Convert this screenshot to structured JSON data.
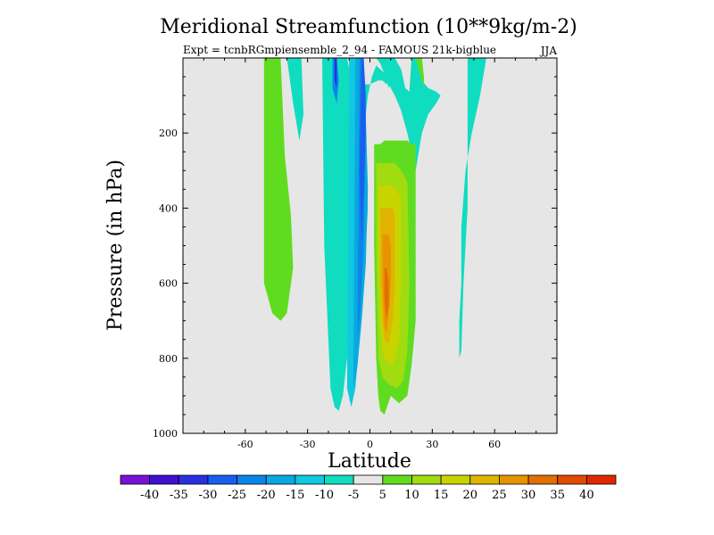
{
  "chart_data": {
    "type": "heatmap",
    "title": "Meridional Streamfunction (10**9kg/m-2)",
    "subtitle": "Expt = tcnbRGmpiensemble_2_94 - FAMOUS 21k-bigblue",
    "season": "JJA",
    "xlabel": "Latitude",
    "ylabel": "Pressure (in hPa)",
    "xlim": [
      -90,
      90
    ],
    "ylim": [
      1000,
      0
    ],
    "xticks": [
      -60,
      -30,
      0,
      30,
      60
    ],
    "xtick_labels": [
      "-60",
      "-30",
      "0",
      "30",
      "60"
    ],
    "yticks": [
      200,
      400,
      600,
      800,
      1000
    ],
    "ytick_labels": [
      "200",
      "400",
      "600",
      "800",
      "1000"
    ],
    "background": "#e6e6e6",
    "colorbar": {
      "colors": [
        "#7a10d8",
        "#4010d0",
        "#2a30e0",
        "#1a5ef0",
        "#0a86e8",
        "#0aa8e0",
        "#10c8e0",
        "#10dcc0",
        "#e6e6e6",
        "#60dc20",
        "#a0dc10",
        "#c8d400",
        "#e0b400",
        "#e89400",
        "#e07000",
        "#e04c00",
        "#e02800"
      ],
      "labels": [
        "-40",
        "-35",
        "-30",
        "-25",
        "-20",
        "-15",
        "-10",
        "-5",
        "5",
        "10",
        "15",
        "20",
        "25",
        "30",
        "35",
        "40"
      ]
    },
    "regions": [
      {
        "lat": [
          -50,
          -47,
          -43,
          -41,
          -38,
          -37,
          -40,
          -43,
          -47,
          -51,
          -51
        ],
        "p": [
          0,
          0,
          0,
          260,
          420,
          560,
          680,
          700,
          680,
          600,
          0
        ],
        "value": 7.5
      },
      {
        "lat": [
          -40,
          -38,
          -33,
          -32,
          -34,
          -37
        ],
        "p": [
          0,
          0,
          0,
          150,
          220,
          120
        ],
        "value": -7.5
      },
      {
        "lat": [
          -23,
          -21,
          -18,
          -15,
          -14,
          -11,
          -10,
          -9,
          -8,
          -6,
          -4,
          -2,
          0,
          2,
          4,
          6,
          8,
          9,
          7,
          5,
          3,
          1,
          -1,
          -3,
          -5,
          -7,
          -9,
          -11,
          -13,
          -15,
          -17,
          -19,
          -22,
          -23
        ],
        "p": [
          0,
          0,
          0,
          0,
          0,
          0,
          30,
          75,
          85,
          85,
          75,
          70,
          70,
          65,
          60,
          60,
          70,
          60,
          40,
          30,
          20,
          50,
          100,
          200,
          350,
          500,
          650,
          800,
          900,
          940,
          930,
          880,
          500,
          0
        ],
        "value": -7.5
      },
      {
        "lat": [
          -10,
          -7,
          -4,
          -2,
          -1,
          -3,
          -5,
          -7,
          -9,
          -11
        ],
        "p": [
          0,
          0,
          0,
          200,
          400,
          600,
          750,
          880,
          930,
          880
        ],
        "value": -12.5
      },
      {
        "lat": [
          -7,
          -4,
          -2,
          -1,
          -2,
          -4,
          -6,
          -8
        ],
        "p": [
          0,
          0,
          150,
          350,
          550,
          700,
          820,
          880
        ],
        "value": -17.5
      },
      {
        "lat": [
          -5,
          -3,
          -2,
          -3,
          -5,
          -6
        ],
        "p": [
          0,
          0,
          200,
          500,
          700,
          750
        ],
        "value": -22.5
      },
      {
        "lat": [
          -4,
          -3,
          -2,
          -2,
          -3,
          -4,
          -5
        ],
        "p": [
          0,
          0,
          100,
          200,
          350,
          500,
          300
        ],
        "value": -27.5
      },
      {
        "lat": [
          -18,
          -16,
          -15,
          -16,
          -18
        ],
        "p": [
          0,
          0,
          60,
          120,
          80
        ],
        "value": -22.5
      },
      {
        "lat": [
          -17,
          -16,
          -16,
          -17
        ],
        "p": [
          0,
          0,
          80,
          60
        ],
        "value": -32.5
      },
      {
        "lat": [
          1,
          3,
          5,
          6,
          7,
          8,
          9,
          10,
          11,
          12,
          11,
          10,
          8,
          6,
          4,
          2,
          1
        ],
        "p": [
          0,
          0,
          0,
          20,
          40,
          60,
          80,
          70,
          50,
          20,
          0,
          0,
          0,
          0,
          0,
          0,
          0
        ],
        "value": -7.5
      },
      {
        "lat": [
          3,
          5,
          6,
          7,
          8
        ],
        "p": [
          0,
          0,
          20,
          40,
          0
        ],
        "value": -12.5
      },
      {
        "lat": [
          8,
          11,
          12,
          15,
          17,
          19,
          20,
          24,
          25,
          25,
          28,
          32,
          34,
          32,
          28,
          25,
          22,
          18,
          15,
          12,
          10,
          8,
          6,
          5,
          3,
          1,
          0
        ],
        "p": [
          0,
          0,
          0,
          30,
          80,
          90,
          0,
          0,
          0,
          60,
          80,
          90,
          100,
          120,
          150,
          200,
          300,
          200,
          140,
          100,
          80,
          50,
          30,
          15,
          0,
          0,
          0
        ],
        "value": -7.5
      },
      {
        "lat": [
          22,
          25,
          26,
          26
        ],
        "p": [
          0,
          0,
          50,
          80
        ],
        "value": 7.5
      },
      {
        "lat": [
          2,
          5,
          7,
          9,
          14,
          18,
          20,
          22,
          22,
          22,
          20,
          18,
          14,
          10,
          7,
          5,
          4,
          3,
          2
        ],
        "p": [
          230,
          230,
          220,
          220,
          220,
          220,
          230,
          230,
          400,
          700,
          820,
          900,
          920,
          900,
          950,
          940,
          900,
          800,
          500
        ],
        "value": 7.5
      },
      {
        "lat": [
          3,
          6,
          9,
          12,
          15,
          18,
          19,
          18,
          16,
          13,
          9,
          6,
          4,
          3
        ],
        "p": [
          280,
          280,
          280,
          280,
          300,
          330,
          600,
          780,
          860,
          880,
          870,
          850,
          800,
          500
        ],
        "value": 12.5
      },
      {
        "lat": [
          4,
          7,
          9,
          11,
          13,
          15,
          15,
          14,
          11,
          8,
          6,
          5,
          4
        ],
        "p": [
          340,
          340,
          340,
          340,
          350,
          380,
          600,
          760,
          820,
          810,
          780,
          700,
          500
        ],
        "value": 17.5
      },
      {
        "lat": [
          5,
          7,
          9,
          11,
          12,
          12,
          11,
          9,
          7,
          6,
          5
        ],
        "p": [
          400,
          400,
          400,
          400,
          420,
          600,
          700,
          760,
          750,
          700,
          600
        ],
        "value": 22.5
      },
      {
        "lat": [
          6,
          7,
          9,
          10,
          10,
          9,
          8,
          7,
          6
        ],
        "p": [
          470,
          470,
          470,
          500,
          600,
          680,
          730,
          720,
          600
        ],
        "value": 27.5
      },
      {
        "lat": [
          7,
          8,
          9,
          9,
          8,
          7
        ],
        "p": [
          560,
          560,
          600,
          660,
          700,
          640
        ],
        "value": 32.5
      },
      {
        "lat": [
          47,
          52,
          56,
          53,
          49,
          46,
          44,
          44,
          43,
          43,
          44,
          45,
          47
        ],
        "p": [
          0,
          0,
          0,
          100,
          200,
          300,
          450,
          600,
          700,
          800,
          780,
          600,
          400
        ],
        "value": -7.5
      }
    ]
  }
}
